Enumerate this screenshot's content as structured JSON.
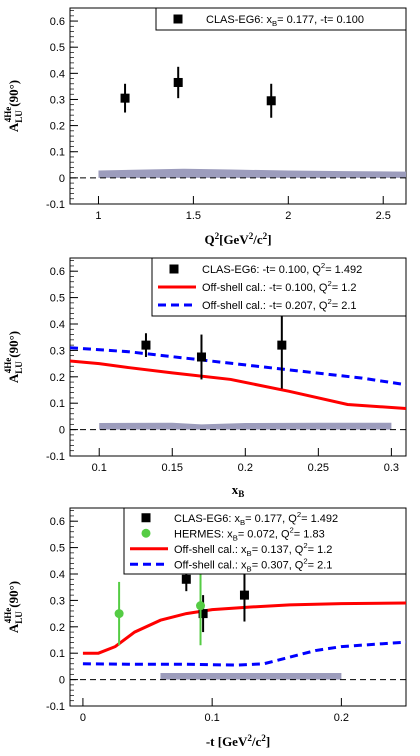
{
  "chart_data": [
    {
      "type": "scatter",
      "xlabel": "Q²[GeV²/c²]",
      "ylabel": "A_LU^4He(90°)",
      "xlim": [
        0.85,
        2.62
      ],
      "ylim": [
        -0.1,
        0.65
      ],
      "xticks": [
        {
          "v": 1,
          "label": "1"
        },
        {
          "v": 1.5,
          "label": "1.5"
        },
        {
          "v": 2,
          "label": "2"
        },
        {
          "v": 2.5,
          "label": "2.5"
        }
      ],
      "yticks": [
        {
          "v": -0.1,
          "label": "-0.1"
        },
        {
          "v": 0,
          "label": "0"
        },
        {
          "v": 0.1,
          "label": "0.1"
        },
        {
          "v": 0.2,
          "label": "0.2"
        },
        {
          "v": 0.3,
          "label": "0.3"
        },
        {
          "v": 0.4,
          "label": "0.4"
        },
        {
          "v": 0.5,
          "label": "0.5"
        },
        {
          "v": 0.6,
          "label": "0.6"
        }
      ],
      "series": [
        {
          "name": "CLAS-EG6: x_B= 0.177, -t= 0.100",
          "kind": "points",
          "marker": "square",
          "color": "#000000",
          "points": [
            {
              "x": 1.14,
              "y": 0.305,
              "err": 0.055
            },
            {
              "x": 1.42,
              "y": 0.365,
              "err": 0.06
            },
            {
              "x": 1.91,
              "y": 0.295,
              "err": 0.065
            }
          ]
        }
      ],
      "systematic_band": {
        "color": "#9c9cbc",
        "x": [
          1.0,
          1.25,
          1.45,
          1.7,
          2.0,
          2.3,
          2.62
        ],
        "upper": [
          0.028,
          0.032,
          0.035,
          0.032,
          0.028,
          0.026,
          0.024
        ],
        "lower": [
          0,
          0,
          0,
          0,
          0,
          0,
          0
        ]
      },
      "zero_line": true,
      "legend_placement": "top-right"
    },
    {
      "type": "line",
      "xlabel": "x_B",
      "ylabel": "A_LU^4He(90°)",
      "xlim": [
        0.08,
        0.31
      ],
      "ylim": [
        -0.1,
        0.65
      ],
      "xticks": [
        {
          "v": 0.1,
          "label": "0.1"
        },
        {
          "v": 0.15,
          "label": "0.15"
        },
        {
          "v": 0.2,
          "label": "0.2"
        },
        {
          "v": 0.25,
          "label": "0.25"
        },
        {
          "v": 0.3,
          "label": "0.3"
        }
      ],
      "yticks": [
        {
          "v": -0.1,
          "label": "-0.1"
        },
        {
          "v": 0,
          "label": "0"
        },
        {
          "v": 0.1,
          "label": "0.1"
        },
        {
          "v": 0.2,
          "label": "0.2"
        },
        {
          "v": 0.3,
          "label": "0.3"
        },
        {
          "v": 0.4,
          "label": "0.4"
        },
        {
          "v": 0.5,
          "label": "0.5"
        },
        {
          "v": 0.6,
          "label": "0.6"
        }
      ],
      "series": [
        {
          "name": "CLAS-EG6: -t= 0.100, Q²= 1.492",
          "kind": "points",
          "marker": "square",
          "color": "#000000",
          "points": [
            {
              "x": 0.132,
              "y": 0.32,
              "err": 0.045
            },
            {
              "x": 0.17,
              "y": 0.275,
              "err": 0.085
            },
            {
              "x": 0.225,
              "y": 0.32,
              "err": 0.165
            }
          ]
        },
        {
          "name": "Off-shell cal.: -t= 0.100, Q²= 1.2",
          "kind": "line",
          "color": "#ff0000",
          "dash": "",
          "x": [
            0.08,
            0.1,
            0.12,
            0.15,
            0.19,
            0.23,
            0.27,
            0.31
          ],
          "y": [
            0.26,
            0.25,
            0.235,
            0.215,
            0.19,
            0.145,
            0.095,
            0.08
          ]
        },
        {
          "name": "Off-shell cal.: -t= 0.207, Q²= 2.1",
          "kind": "line",
          "color": "#0000ff",
          "dash": "8,5",
          "x": [
            0.08,
            0.12,
            0.16,
            0.2,
            0.24,
            0.28,
            0.31
          ],
          "y": [
            0.31,
            0.295,
            0.27,
            0.245,
            0.22,
            0.195,
            0.17
          ]
        }
      ],
      "systematic_band": {
        "color": "#9c9cbc",
        "x": [
          0.1,
          0.15,
          0.17,
          0.2,
          0.25,
          0.3
        ],
        "upper": [
          0.025,
          0.026,
          0.02,
          0.025,
          0.026,
          0.026
        ],
        "lower": [
          0,
          0,
          0,
          0,
          0,
          0
        ]
      },
      "zero_line": true,
      "legend_placement": "top-right"
    },
    {
      "type": "line",
      "xlabel": "-t [GeV²/c²]",
      "ylabel": "A_LU^4He(90°)",
      "xlim": [
        -0.01,
        0.25
      ],
      "ylim": [
        -0.1,
        0.65
      ],
      "xticks": [
        {
          "v": 0,
          "label": "0"
        },
        {
          "v": 0.1,
          "label": "0.1"
        },
        {
          "v": 0.2,
          "label": "0.2"
        }
      ],
      "yticks": [
        {
          "v": -0.1,
          "label": "-0.1"
        },
        {
          "v": 0,
          "label": "0"
        },
        {
          "v": 0.1,
          "label": "0.1"
        },
        {
          "v": 0.2,
          "label": "0.2"
        },
        {
          "v": 0.3,
          "label": "0.3"
        },
        {
          "v": 0.4,
          "label": "0.4"
        },
        {
          "v": 0.5,
          "label": "0.5"
        },
        {
          "v": 0.6,
          "label": "0.6"
        }
      ],
      "series": [
        {
          "name": "CLAS-EG6: x_B= 0.177, Q²= 1.492",
          "kind": "points",
          "marker": "square",
          "color": "#000000",
          "points": [
            {
              "x": 0.08,
              "y": 0.38,
              "err": 0.045
            },
            {
              "x": 0.093,
              "y": 0.25,
              "err": 0.07
            },
            {
              "x": 0.125,
              "y": 0.32,
              "err": 0.1
            }
          ]
        },
        {
          "name": "HERMES: x_B= 0.072, Q²= 1.83",
          "kind": "points",
          "marker": "circle",
          "color": "#55cc44",
          "points": [
            {
              "x": 0.028,
              "y": 0.25,
              "err": 0.12
            },
            {
              "x": 0.091,
              "y": 0.28,
              "err": 0.15
            }
          ]
        },
        {
          "name": "Off-shell cal.: x_B= 0.137, Q²= 1.2",
          "kind": "line",
          "color": "#ff0000",
          "dash": "",
          "x": [
            0.0,
            0.012,
            0.025,
            0.04,
            0.06,
            0.08,
            0.1,
            0.13,
            0.16,
            0.2,
            0.25
          ],
          "y": [
            0.1,
            0.1,
            0.125,
            0.18,
            0.225,
            0.25,
            0.265,
            0.275,
            0.283,
            0.288,
            0.29
          ]
        },
        {
          "name": "Off-shell cal.: x_B= 0.307, Q²= 2.1",
          "kind": "line",
          "color": "#0000ff",
          "dash": "8,5",
          "x": [
            0.0,
            0.04,
            0.08,
            0.12,
            0.14,
            0.16,
            0.18,
            0.2,
            0.25
          ],
          "y": [
            0.06,
            0.058,
            0.058,
            0.055,
            0.06,
            0.085,
            0.11,
            0.125,
            0.142
          ]
        }
      ],
      "systematic_band": {
        "color": "#9c9cbc",
        "x": [
          0.06,
          0.1,
          0.15,
          0.2
        ],
        "upper": [
          0.025,
          0.025,
          0.025,
          0.025
        ],
        "lower": [
          0,
          0,
          0,
          0
        ]
      },
      "zero_line": true,
      "legend_placement": "top-right"
    }
  ]
}
